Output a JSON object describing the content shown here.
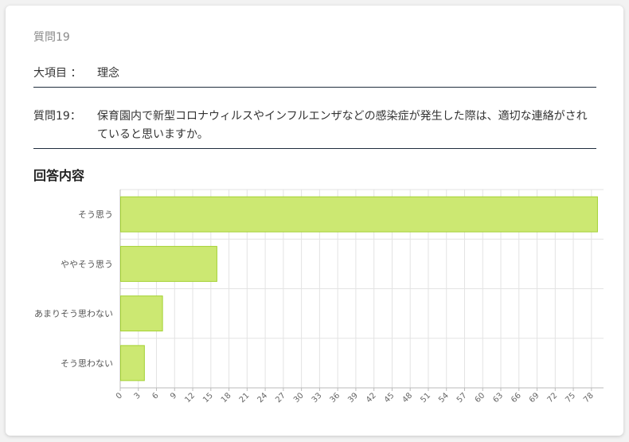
{
  "header": {
    "question_number": "質問19"
  },
  "category": {
    "label": "大項目 ：",
    "value": "理念"
  },
  "question": {
    "label": "質問19：",
    "text": "保育園内で新型コロナウィルスやインフルエンザなどの感染症が発生した際は、適切な連絡がされていると思いますか。"
  },
  "section": {
    "title": "回答内容"
  },
  "colors": {
    "bar_fill": "#cce872",
    "bar_stroke": "#a3d131",
    "grid": "#e3e3e3",
    "axis": "#bbbbbb"
  },
  "chart_data": {
    "type": "bar",
    "orientation": "horizontal",
    "categories": [
      "そう思う",
      "ややそう思う",
      "あまりそう思わない",
      "そう思わない"
    ],
    "values": [
      79,
      16,
      7,
      4
    ],
    "xlim": [
      0,
      80
    ],
    "xticks": [
      0,
      3,
      6,
      9,
      12,
      15,
      18,
      21,
      24,
      27,
      30,
      33,
      36,
      39,
      42,
      45,
      48,
      51,
      54,
      57,
      60,
      63,
      66,
      69,
      72,
      75,
      78
    ],
    "grid": true,
    "title": "",
    "xlabel": "",
    "ylabel": ""
  }
}
